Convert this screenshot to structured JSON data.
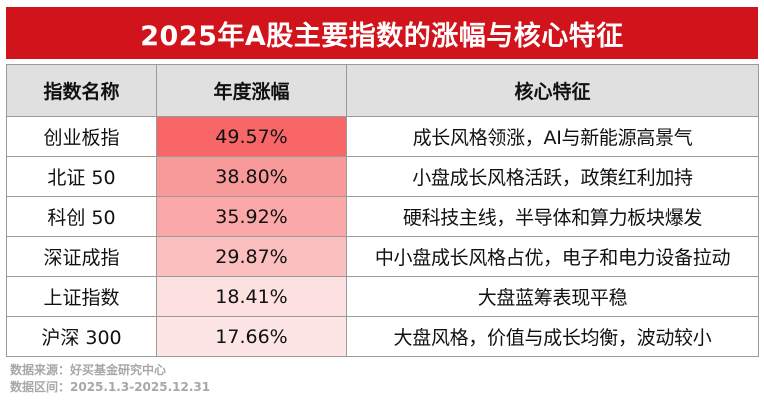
{
  "title": "2025年A股主要指数的涨幅与核心特征",
  "table": {
    "headers": [
      "指数名称",
      "年度涨幅",
      "核心特征"
    ],
    "rows": [
      {
        "name": "创业板指",
        "change": "49.57%",
        "change_value": 49.57,
        "feature": "成长风格领涨，AI与新能源高景气"
      },
      {
        "name": "北证 50",
        "change": "38.80%",
        "change_value": 38.8,
        "feature": "小盘成长风格活跃，政策红利加持"
      },
      {
        "name": "科创 50",
        "change": "35.92%",
        "change_value": 35.92,
        "feature": "硬科技主线，半导体和算力板块爆发"
      },
      {
        "name": "深证成指",
        "change": "29.87%",
        "change_value": 29.87,
        "feature": "中小盘成长风格占优，电子和电力设备拉动"
      },
      {
        "name": "上证指数",
        "change": "18.41%",
        "change_value": 18.41,
        "feature": "大盘蓝筹表现平稳"
      },
      {
        "name": "沪深 300",
        "change": "17.66%",
        "change_value": 17.66,
        "feature": "大盘风格，价值与成长均衡，波动较小"
      }
    ]
  },
  "heat_colors": [
    "#f86668",
    "#f99a9a",
    "#faa8a8",
    "#fbbfbf",
    "#fde1e1",
    "#fde5e5"
  ],
  "footer": {
    "source": "数据来源：好买基金研究中心",
    "range": "数据区间：2025.1.3-2025.12.31"
  }
}
